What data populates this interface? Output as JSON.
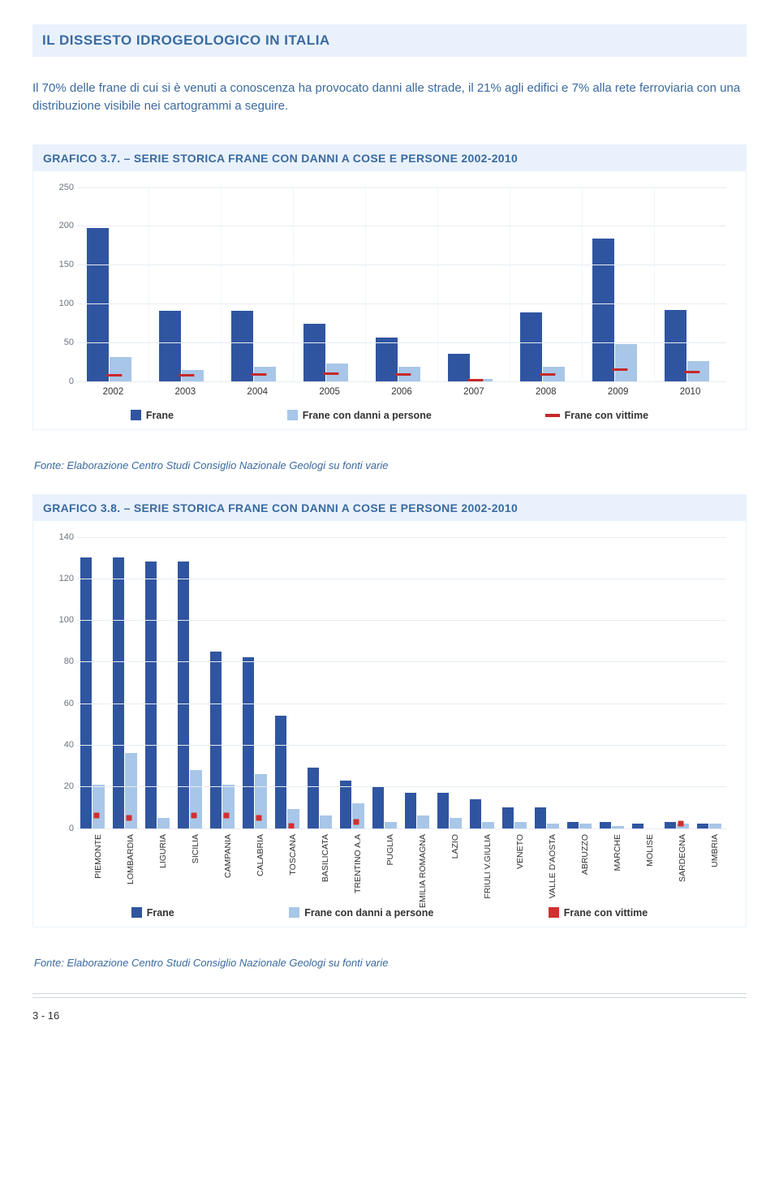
{
  "header_title": "IL DISSESTO IDROGEOLOGICO IN ITALIA",
  "intro_text": "Il 70% delle frane di cui si è venuti a conoscenza ha provocato danni alle strade, il 21% agli edifici e 7% alla rete ferroviaria con una distribuzione visibile nei cartogrammi a seguire.",
  "fonte": "Fonte: Elaborazione Centro Studi Consiglio Nazionale Geologi su fonti varie",
  "page_number": "3 - 16",
  "colors": {
    "frane": "#3055a0",
    "danni": "#a8c6e8",
    "vittime_line": "#c62828",
    "vittime_dot": "#d32f2f"
  },
  "legend": {
    "frane": "Frane",
    "danni": "Frane con danni a persone",
    "vittime": "Frane con vittime"
  },
  "chart1": {
    "title": "GRAFICO 3.7. – SERIE STORICA FRANE CON DANNI A COSE E PERSONE 2002-2010",
    "ymax": 250,
    "ytick_step": 50,
    "yticks": [
      0,
      50,
      100,
      150,
      200,
      250
    ],
    "categories": [
      "2002",
      "2003",
      "2004",
      "2005",
      "2006",
      "2007",
      "2008",
      "2009",
      "2010"
    ],
    "frane": [
      197,
      90,
      90,
      74,
      56,
      35,
      88,
      184,
      92
    ],
    "danni": [
      31,
      14,
      18,
      22,
      18,
      3,
      18,
      48,
      26
    ],
    "vittime": [
      6,
      6,
      7,
      8,
      7,
      0,
      7,
      13,
      10
    ]
  },
  "chart2": {
    "title": "GRAFICO 3.8. – SERIE STORICA FRANE CON DANNI A COSE E PERSONE 2002-2010",
    "ymax": 140,
    "ytick_step": 20,
    "yticks": [
      0,
      20,
      40,
      60,
      80,
      100,
      120,
      140
    ],
    "categories": [
      "PIEMONTE",
      "LOMBARDIA",
      "LIGURIA",
      "SICILIA",
      "CAMPANIA",
      "CALABRIA",
      "TOSCANA",
      "BASILICATA",
      "TRENTINO A.A",
      "PUGLIA",
      "EMILIA ROMAGNA",
      "LAZIO",
      "FRIULI V.GIULIA",
      "VENETO",
      "VALLE D'AOSTA",
      "ABRUZZO",
      "MARCHE",
      "MOLISE",
      "SARDEGNA",
      "UMBRIA"
    ],
    "frane": [
      130,
      130,
      128,
      128,
      85,
      82,
      54,
      29,
      23,
      20,
      17,
      17,
      14,
      10,
      10,
      3,
      3,
      2,
      3,
      2
    ],
    "danni": [
      21,
      36,
      5,
      28,
      21,
      26,
      9,
      6,
      12,
      3,
      6,
      5,
      3,
      3,
      2,
      2,
      1,
      0,
      2,
      2
    ],
    "vittime": [
      6,
      5,
      0,
      6,
      6,
      5,
      1,
      0,
      3,
      0,
      0,
      0,
      0,
      0,
      0,
      0,
      0,
      0,
      2,
      0
    ]
  }
}
